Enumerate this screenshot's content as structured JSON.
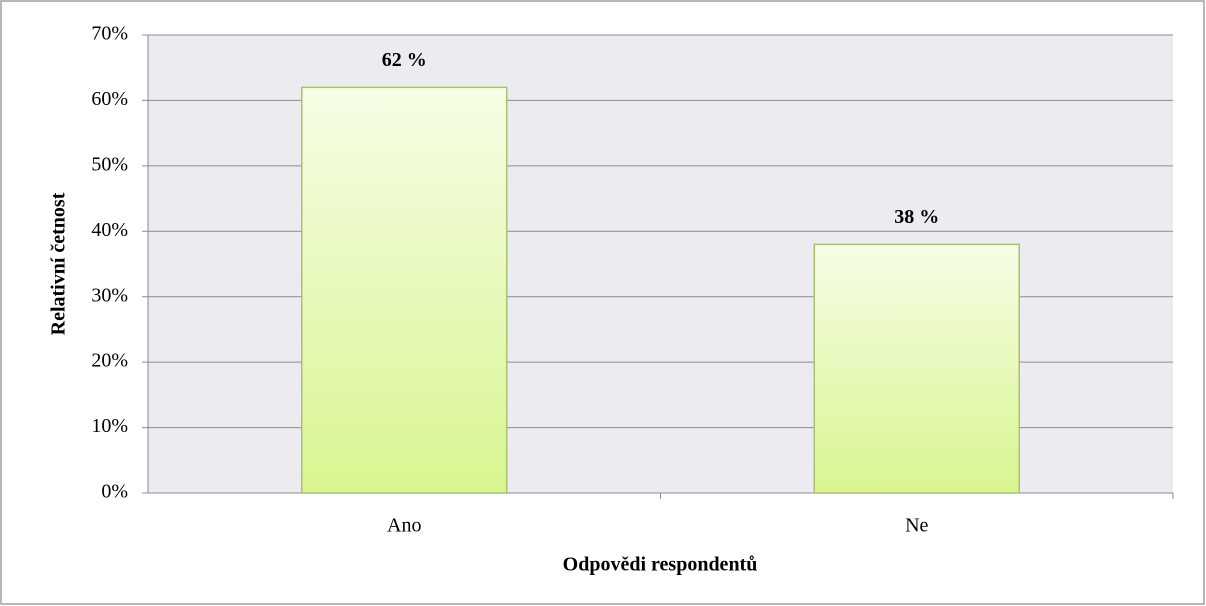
{
  "chart_data": {
    "type": "bar",
    "categories": [
      "Ano",
      "Ne"
    ],
    "values": [
      62,
      38
    ],
    "value_labels": [
      "62 %",
      "38 %"
    ],
    "color": "#ddf79a",
    "x_label": "Odpovědi respondentů",
    "y_label": "Relativní četnost",
    "ylim": [
      0,
      70
    ],
    "yticks": [
      {
        "value": 0,
        "label": "0%"
      },
      {
        "value": 10,
        "label": "10%"
      },
      {
        "value": 20,
        "label": "20%"
      },
      {
        "value": 30,
        "label": "30%"
      },
      {
        "value": 40,
        "label": "40%"
      },
      {
        "value": 50,
        "label": "50%"
      },
      {
        "value": 60,
        "label": "60%"
      },
      {
        "value": 70,
        "label": "70%"
      }
    ],
    "grid": true
  }
}
